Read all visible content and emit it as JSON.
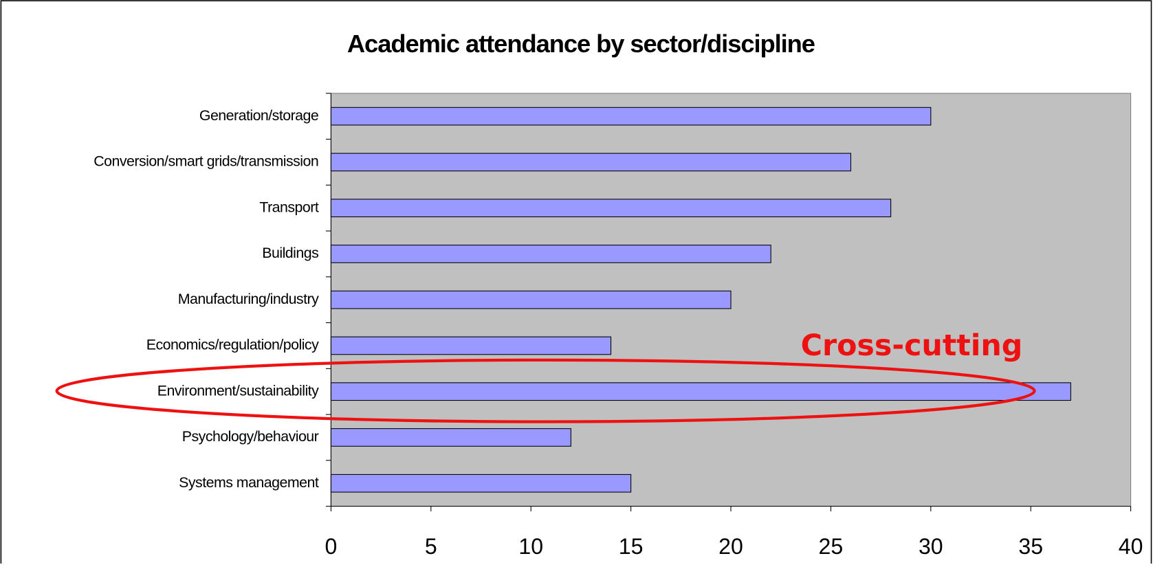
{
  "chart_data": {
    "type": "bar",
    "orientation": "horizontal",
    "title": "Academic attendance by sector/discipline",
    "categories": [
      "Generation/storage",
      "Conversion/smart grids/transmission",
      "Transport",
      "Buildings",
      "Manufacturing/industry",
      "Economics/regulation/policy",
      "Environment/sustainability",
      "Psychology/behaviour",
      "Systems management"
    ],
    "values": [
      30,
      26,
      28,
      22,
      20,
      14,
      37,
      12,
      15
    ],
    "color": "#9999ff",
    "xlim": [
      0,
      40
    ],
    "xticks": [
      0,
      5,
      10,
      15,
      20,
      25,
      30,
      35,
      40
    ],
    "annotation": "Cross-cutting"
  }
}
